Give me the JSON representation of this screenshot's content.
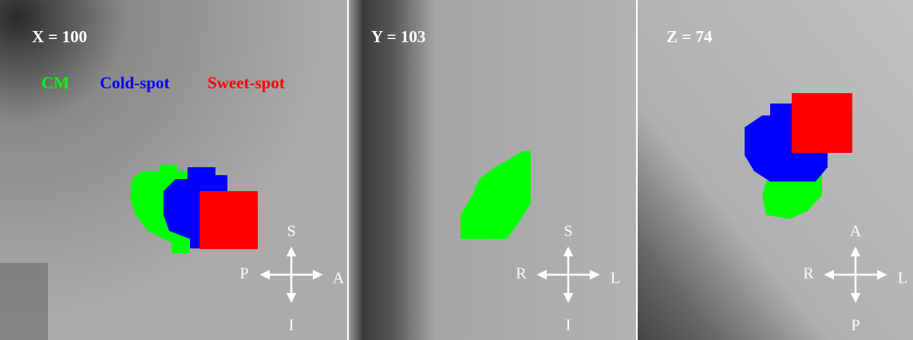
{
  "panels": [
    {
      "label": "X = 100",
      "directions": {
        "top": "S",
        "left": "P",
        "right": "A",
        "bottom": "I"
      }
    },
    {
      "label": "Y = 103",
      "directions": {
        "top": "S",
        "left": "R",
        "right": "L",
        "bottom": "I"
      }
    },
    {
      "label": "Z = 74",
      "directions": {
        "top": "A",
        "left": "R",
        "right": "L",
        "bottom": "P"
      }
    }
  ],
  "legend": [
    {
      "name": "CM",
      "color": "#00ff00"
    },
    {
      "name": "Cold-spot",
      "color": "#0000ff"
    },
    {
      "name": "Sweet-spot",
      "color": "#ff0000"
    }
  ]
}
